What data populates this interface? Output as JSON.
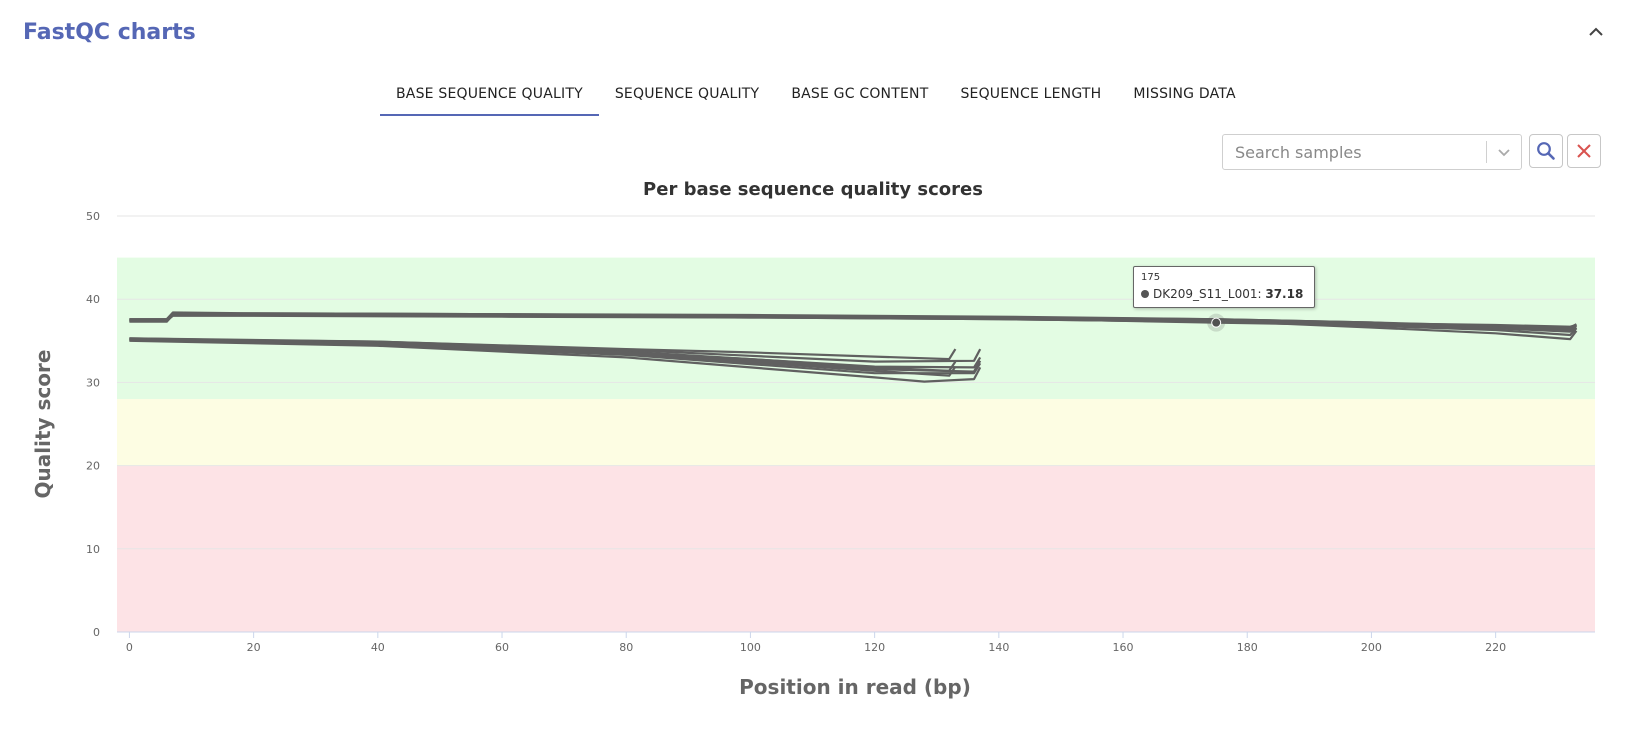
{
  "header": {
    "title": "FastQC charts"
  },
  "tabs": [
    {
      "label": "BASE SEQUENCE QUALITY",
      "active": true
    },
    {
      "label": "SEQUENCE QUALITY",
      "active": false
    },
    {
      "label": "BASE GC CONTENT",
      "active": false
    },
    {
      "label": "SEQUENCE LENGTH",
      "active": false
    },
    {
      "label": "MISSING DATA",
      "active": false
    }
  ],
  "search": {
    "placeholder": "Search samples",
    "value": ""
  },
  "icons": {
    "collapse": "chevron-up-icon",
    "dropdown": "chevron-down-icon",
    "search": "search-icon",
    "clear": "close-icon"
  },
  "colors": {
    "accent": "#5567b5",
    "line": "#606060",
    "good_zone": "#e3fce3",
    "warn_zone": "#fdfde3",
    "bad_zone": "#fde3e6",
    "clear_icon": "#d9534f"
  },
  "tooltip": {
    "x_label": "175",
    "sample": "DK209_S11_L001",
    "value": "37.18"
  },
  "chart_data": {
    "type": "line",
    "title": "Per base sequence quality scores",
    "xlabel": "Position in read (bp)",
    "ylabel": "Quality score",
    "xlim": [
      -2,
      236
    ],
    "ylim": [
      0,
      50
    ],
    "xticks": [
      0,
      20,
      40,
      60,
      80,
      100,
      120,
      140,
      160,
      180,
      200,
      220
    ],
    "yticks": [
      0,
      10,
      20,
      30,
      40,
      50
    ],
    "bands": [
      {
        "from": 0,
        "to": 20,
        "color": "#fde3e6"
      },
      {
        "from": 20,
        "to": 28,
        "color": "#fdfde3"
      },
      {
        "from": 28,
        "to": 45,
        "color": "#e3fce3"
      }
    ],
    "grid": true,
    "legend": "none",
    "series": [
      {
        "x": [
          0,
          6,
          7,
          20,
          60,
          100,
          140,
          175,
          200,
          220,
          232,
          233
        ],
        "values": [
          37.6,
          37.6,
          38.3,
          38.2,
          38.1,
          37.9,
          37.7,
          37.18,
          36.9,
          36.5,
          36.3,
          36.8
        ]
      },
      {
        "x": [
          0,
          6,
          7,
          20,
          60,
          100,
          140,
          175,
          200,
          220,
          232,
          233
        ],
        "values": [
          37.4,
          37.4,
          38.0,
          38.0,
          37.9,
          37.8,
          37.6,
          37.3,
          37.0,
          36.7,
          36.4,
          36.9
        ]
      },
      {
        "x": [
          0,
          6,
          7,
          20,
          60,
          100,
          140,
          175,
          200,
          220,
          232,
          233
        ],
        "values": [
          37.5,
          37.5,
          38.2,
          38.3,
          38.2,
          38.0,
          37.8,
          37.6,
          37.2,
          36.8,
          36.6,
          37.0
        ]
      },
      {
        "x": [
          0,
          6,
          7,
          20,
          60,
          100,
          140,
          175,
          200,
          220,
          232,
          233
        ],
        "values": [
          37.3,
          37.3,
          38.1,
          38.1,
          38.0,
          37.9,
          37.7,
          37.5,
          37.1,
          36.9,
          36.7,
          36.9
        ]
      },
      {
        "x": [
          0,
          6,
          7,
          20,
          60,
          100,
          140,
          175,
          200,
          220,
          232,
          233
        ],
        "values": [
          37.6,
          37.6,
          38.4,
          38.3,
          38.2,
          38.1,
          37.9,
          37.6,
          37.2,
          36.5,
          36.1,
          36.6
        ]
      },
      {
        "x": [
          0,
          6,
          7,
          20,
          60,
          100,
          140,
          175,
          200,
          220,
          232,
          233
        ],
        "values": [
          37.4,
          37.4,
          38.2,
          38.1,
          38.1,
          37.9,
          37.8,
          37.4,
          36.6,
          35.9,
          35.2,
          36.2
        ]
      },
      {
        "x": [
          0,
          6,
          7,
          20,
          60,
          100,
          140,
          175,
          200,
          220,
          232,
          233
        ],
        "values": [
          37.5,
          37.5,
          38.3,
          38.2,
          38.0,
          37.8,
          37.6,
          37.3,
          36.8,
          36.3,
          35.7,
          36.5
        ]
      },
      {
        "x": [
          0,
          40,
          80,
          100,
          120,
          132,
          133
        ],
        "values": [
          35.3,
          34.8,
          33.7,
          32.8,
          31.8,
          31.4,
          32.5
        ]
      },
      {
        "x": [
          0,
          40,
          80,
          100,
          120,
          132,
          133
        ],
        "values": [
          35.2,
          34.9,
          34.0,
          33.6,
          33.1,
          32.8,
          34.0
        ]
      },
      {
        "x": [
          0,
          40,
          80,
          100,
          120,
          132,
          133
        ],
        "values": [
          35.1,
          34.6,
          33.4,
          32.4,
          31.4,
          30.8,
          31.9
        ]
      },
      {
        "x": [
          0,
          40,
          80,
          100,
          120,
          136,
          137
        ],
        "values": [
          35.3,
          34.9,
          33.9,
          33.2,
          32.5,
          32.6,
          34.0
        ]
      },
      {
        "x": [
          0,
          40,
          80,
          100,
          120,
          136,
          137
        ],
        "values": [
          35.2,
          34.7,
          33.6,
          32.8,
          31.9,
          31.8,
          33.0
        ]
      },
      {
        "x": [
          0,
          40,
          80,
          100,
          120,
          136,
          137
        ],
        "values": [
          35.1,
          34.5,
          33.3,
          32.2,
          31.1,
          31.1,
          32.3
        ]
      },
      {
        "x": [
          0,
          40,
          80,
          100,
          120,
          128,
          136,
          137
        ],
        "values": [
          35.0,
          34.4,
          33.0,
          31.8,
          30.6,
          30.1,
          30.4,
          31.8
        ]
      },
      {
        "x": [
          0,
          40,
          80,
          100,
          120,
          136,
          137
        ],
        "values": [
          35.2,
          34.6,
          33.5,
          32.6,
          31.6,
          31.3,
          32.6
        ]
      }
    ],
    "highlight": {
      "x": 175,
      "y": 37.18
    }
  }
}
